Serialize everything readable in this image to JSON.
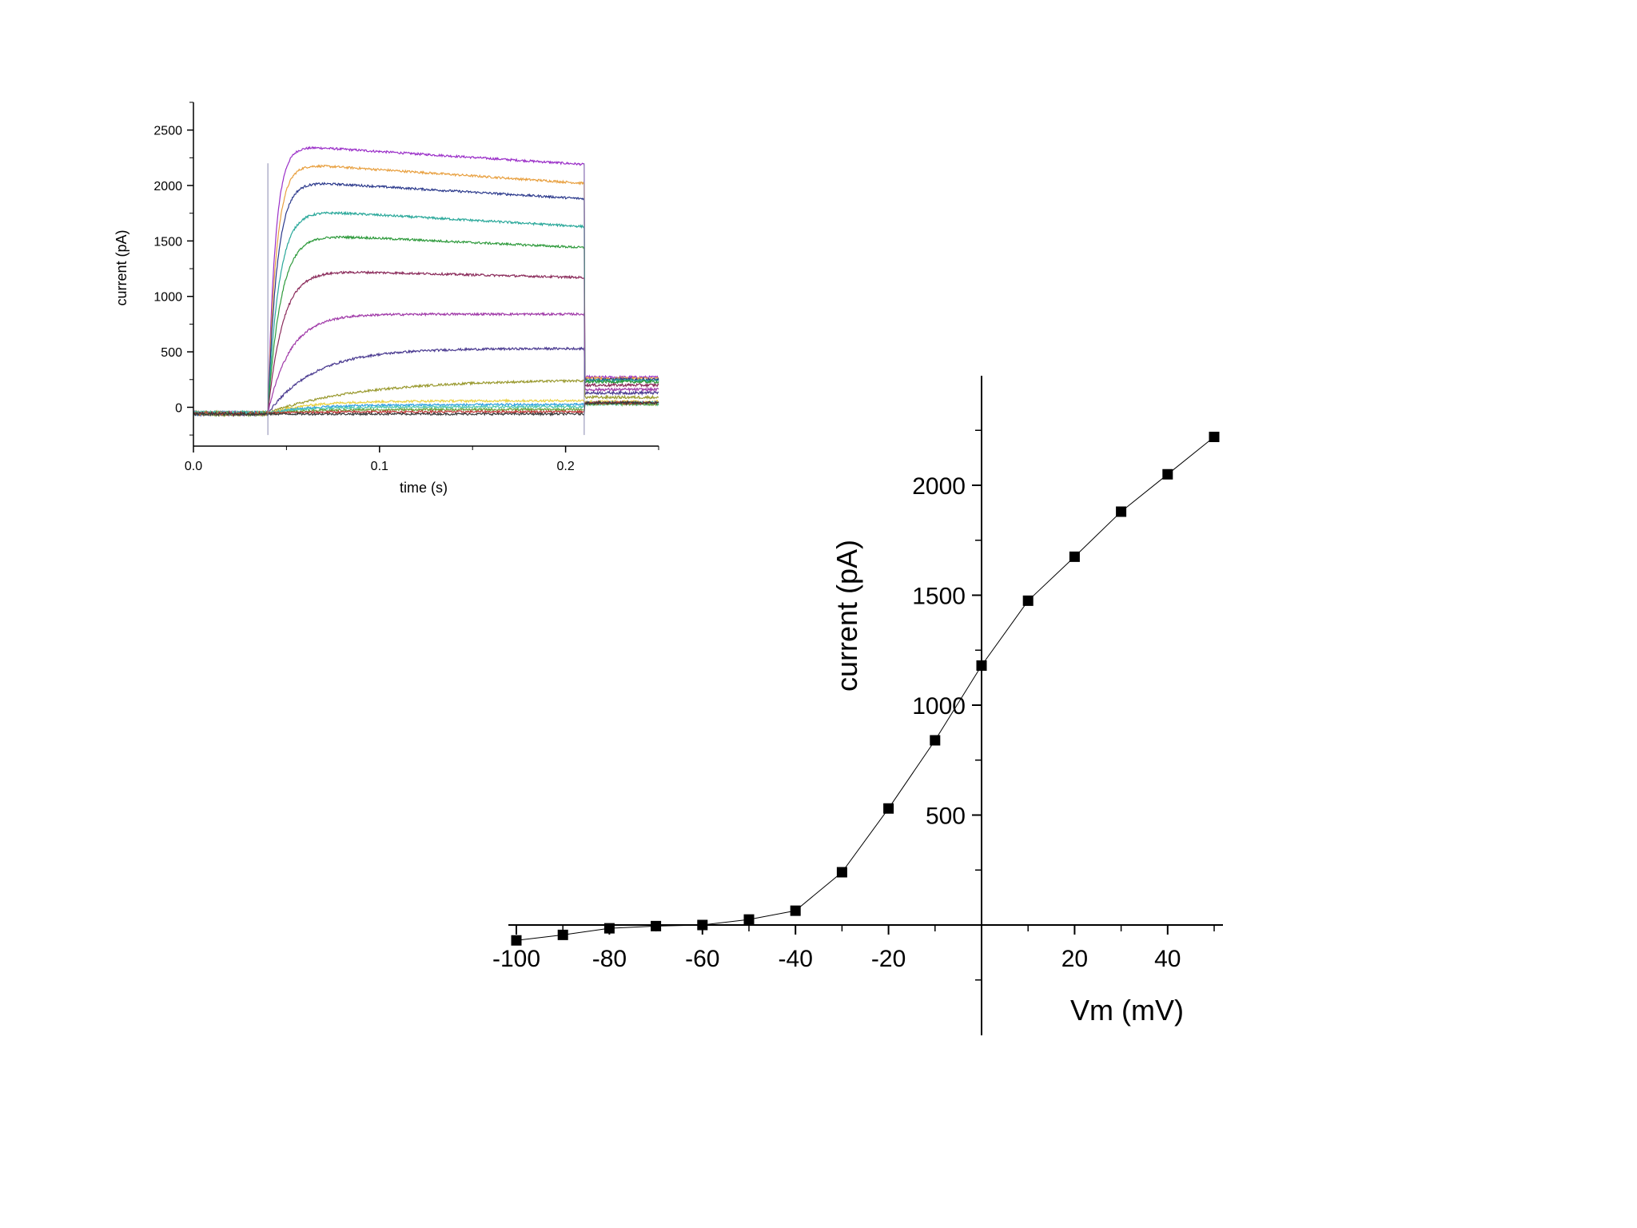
{
  "chart_data": [
    {
      "type": "line",
      "xlabel": "time (s)",
      "ylabel": "current (pA)",
      "xlim": [
        0.0,
        0.25
      ],
      "ylim": [
        -350,
        2750
      ],
      "x_ticks": [
        0.0,
        0.1,
        0.2
      ],
      "x_tick_labels": [
        "0.0",
        "0.1",
        "0.2"
      ],
      "y_ticks": [
        0,
        500,
        1000,
        1500,
        2000,
        2500
      ],
      "y_tick_labels": [
        "0",
        "500",
        "1000",
        "1500",
        "2000",
        "2500"
      ],
      "pulse": {
        "start": 0.04,
        "end": 0.21
      },
      "grid": false,
      "series": [
        {
          "color": "#9b30c8",
          "peak": 2370,
          "end": 2190,
          "tau": 0.004,
          "tail": 270,
          "pre": -55
        },
        {
          "color": "#e8a040",
          "peak": 2210,
          "end": 2020,
          "tau": 0.0045,
          "tail": 260,
          "pre": -50
        },
        {
          "color": "#2c3a8c",
          "peak": 2050,
          "end": 1880,
          "tau": 0.005,
          "tail": 250,
          "pre": -60
        },
        {
          "color": "#2aa89a",
          "peak": 1790,
          "end": 1630,
          "tau": 0.006,
          "tail": 240,
          "pre": -50
        },
        {
          "color": "#2e9a3c",
          "peak": 1570,
          "end": 1440,
          "tau": 0.007,
          "tail": 230,
          "pre": -55
        },
        {
          "color": "#8a2a5a",
          "peak": 1240,
          "end": 1170,
          "tau": 0.008,
          "tail": 200,
          "pre": -60
        },
        {
          "color": "#a03aa8",
          "peak": 840,
          "end": 840,
          "tau": 0.012,
          "tail": 160,
          "pre": -50
        },
        {
          "color": "#4a3a90",
          "peak": 530,
          "end": 530,
          "tau": 0.025,
          "tail": 130,
          "pre": -55
        },
        {
          "color": "#9a9a30",
          "peak": 250,
          "end": 250,
          "tau": 0.05,
          "tail": 90,
          "pre": -50
        },
        {
          "color": "#e8d040",
          "peak": 55,
          "end": 60,
          "tau": 0.02,
          "tail": 50,
          "pre": -60
        },
        {
          "color": "#30a0e0",
          "peak": 20,
          "end": 25,
          "tau": 0.02,
          "tail": 40,
          "pre": -55
        },
        {
          "color": "#50c8b0",
          "peak": 0,
          "end": 5,
          "tau": 0.02,
          "tail": 30,
          "pre": -50
        },
        {
          "color": "#6aa03a",
          "peak": -20,
          "end": -20,
          "tau": 0.02,
          "tail": 30,
          "pre": -60
        },
        {
          "color": "#c03a3a",
          "peak": -40,
          "end": -40,
          "tau": 0.02,
          "tail": 40,
          "pre": -55
        },
        {
          "color": "#3a3a3a",
          "peak": -60,
          "end": -60,
          "tau": 0.02,
          "tail": 40,
          "pre": -60
        }
      ]
    },
    {
      "type": "line",
      "xlabel": "Vm (mV)",
      "ylabel": "current (pA)",
      "xlim": [
        -102,
        52
      ],
      "ylim": [
        -500,
        2500
      ],
      "x_ticks": [
        -100,
        -80,
        -60,
        -40,
        -20,
        20,
        40
      ],
      "x_tick_labels": [
        "-100",
        "-80",
        "-60",
        "-40",
        "-20",
        "20",
        "40"
      ],
      "x_minor_ticks": [
        -90,
        -70,
        -50,
        -30,
        -10,
        10,
        30,
        50
      ],
      "y_ticks": [
        500,
        1000,
        1500,
        2000
      ],
      "y_tick_labels": [
        "500",
        "1000",
        "1500",
        "2000"
      ],
      "y_minor_ticks": [
        -250,
        250,
        750,
        1250,
        1750,
        2250
      ],
      "grid": false,
      "marker": "square",
      "x": [
        -100,
        -90,
        -80,
        -70,
        -60,
        -50,
        -40,
        -30,
        -20,
        -10,
        0,
        10,
        20,
        30,
        40,
        50
      ],
      "y": [
        -70,
        -45,
        -15,
        -5,
        0,
        25,
        65,
        240,
        530,
        840,
        1180,
        1475,
        1675,
        1880,
        2050,
        2220
      ]
    }
  ]
}
